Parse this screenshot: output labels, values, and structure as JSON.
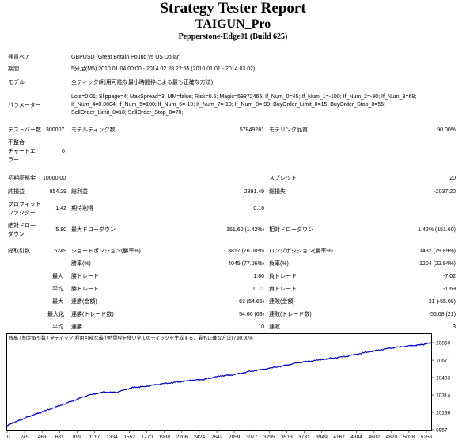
{
  "report": {
    "title": "Strategy Tester Report",
    "ea_name": "TAIGUN_Pro",
    "server": "Pepperstone-Edge01 (Build 625)"
  },
  "info": {
    "symbol_label": "通貨ペア",
    "symbol_value": "GBPUSD (Great Britain Pound vs US Dollar)",
    "period_label": "期間",
    "period_value": "5分足(M5) 2010.01.04 00:00 - 2014.02.28 22:55 (2010.01.01 - 2014.03.02)",
    "model_label": "モデル",
    "model_value": "全ティック(利用可能な最小時間枠による最も正確な方法)",
    "params_label": "パラメーター",
    "params_value": "Lots=0.01; Slippage=4; MaxSpread=3; MM=false; Risk=0.5; Magic=59872465; If_Num_0=45; If_Num_1=-100; If_Num_2=-90; If_Num_3=68; If_Num_4=0.0004; If_Num_5=100; If_Num_6=-10; If_Num_7=-10; If_Num_8=-90; BuyOrder_Limit_0=15; BuyOrder_Stop_0=55; SellOrder_Limit_0=18; SellOrder_Stop_0=70;"
  },
  "stats": {
    "bars_label": "テストバー数",
    "bars_value": "300007",
    "ticks_label": "モデルティック数",
    "ticks_value": "57849281",
    "quality_label": "モデリング品質",
    "quality_value": "90.00%",
    "mismatch_label1": "不整合",
    "mismatch_label2": "チャートエ",
    "mismatch_label3": "ラー",
    "mismatch_value": "0",
    "deposit_label": "初期証拠金",
    "deposit_value": "10000.00",
    "spread_label": "スプレッド",
    "spread_value": "20",
    "netprofit_label": "純損益",
    "netprofit_value": "854.29",
    "grossprofit_label": "総利益",
    "grossprofit_value": "2891.49",
    "grossloss_label": "総損失",
    "grossloss_value": "-2037.20",
    "pf_label1": "プロフィット",
    "pf_label2": "ファクター",
    "pf_value": "1.42",
    "expected_label": "期待利得",
    "expected_value": "0.16",
    "absdd_label1": "絶対ドロー",
    "absdd_label2": "ダウン",
    "absdd_value": "5.80",
    "maxdd_label": "最大ドローダウン",
    "maxdd_value": "151.60 (1.42%)",
    "reldd_label": "相対ドローダウン",
    "reldd_value": "1.42% (151.60)",
    "trades_label": "総取引数",
    "trades_value": "5249",
    "short_label": "ショートポジション(勝率%)",
    "short_value": "3817 (76.00%)",
    "long_label": "ロングポジション(勝率%)",
    "long_value": "1432 (79.89%)",
    "win_label": "勝率(%)",
    "win_value": "4045 (77.06%)",
    "loss_label": "負率(%)",
    "loss_value": "1204 (22.94%)",
    "max1": "最大",
    "maxwin_label": "勝トレード",
    "maxwin_value": "1.80",
    "maxloss_label": "負トレード",
    "maxloss_value": "-7.02",
    "avg1": "平均",
    "avgwin_label": "勝トレード",
    "avgwin_value": "0.71",
    "avgloss_label": "負トレード",
    "avgloss_value": "-1.69",
    "max2": "最大",
    "conswin_label": "連勝(金額)",
    "conswin_value": "63 (54.66)",
    "consloss_label": "連敗(金額)",
    "consloss_value": "21 (-55.08)",
    "max3": "最大化",
    "consprofit_label": "連勝(トレード数)",
    "consprofit_value": "54.66 (63)",
    "consloss2_label": "連敗(トレード数)",
    "consloss2_value": "-55.08 (21)",
    "avg2": "平均",
    "avgcw_label": "連勝",
    "avgcw_value": "10",
    "avgcl_label": "連敗",
    "avgcl_value": "3"
  },
  "chart_data": {
    "type": "line",
    "legend": "残高 / 約定取引数 / 全ティック(利用可能な最小時間枠を使い全てのティックを生成する、最も正確な方法) / 90.00%",
    "x_ticks": [
      "0",
      "245",
      "463",
      "681",
      "899",
      "1117",
      "1334",
      "1552",
      "1770",
      "1988",
      "2206",
      "2424",
      "2642",
      "2859",
      "3077",
      "3295",
      "3513",
      "3731",
      "3949",
      "4167",
      "4384",
      "4602",
      "4820",
      "5038",
      "5256"
    ],
    "y_ticks": [
      "10850",
      "10671",
      "10493",
      "10314",
      "10136",
      "9957"
    ],
    "ylim": [
      9957,
      10850
    ],
    "xlim": [
      0,
      5249
    ],
    "series": [
      {
        "color": "#0000c0",
        "x": [
          0,
          100,
          245,
          400,
          600,
          800,
          1000,
          1200,
          1350,
          1552,
          1700,
          1900,
          2100,
          2300,
          2450,
          2642,
          2800,
          3000,
          3200,
          3400,
          3600,
          3800,
          4000,
          4200,
          4400,
          4600,
          4800,
          5000,
          5150,
          5249
        ],
        "values": [
          10000,
          10035,
          10085,
          10130,
          10190,
          10250,
          10310,
          10345,
          10340,
          10390,
          10400,
          10425,
          10445,
          10465,
          10475,
          10510,
          10520,
          10555,
          10580,
          10610,
          10645,
          10665,
          10690,
          10710,
          10745,
          10775,
          10800,
          10820,
          10830,
          10854
        ]
      }
    ]
  }
}
